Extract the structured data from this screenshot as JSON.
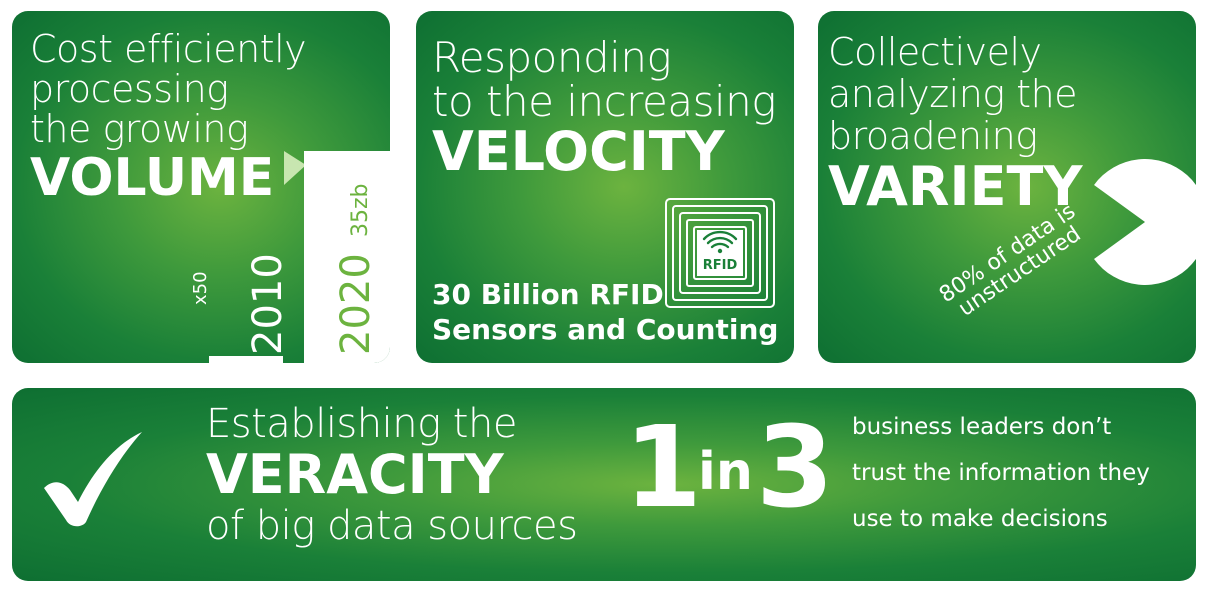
{
  "colors": {
    "tile_green": "#1a8038",
    "accent_green": "#6cb33f",
    "white": "#ffffff"
  },
  "volume": {
    "line1": "Cost efficiently",
    "line2": "processing",
    "line3": "the growing",
    "word": "VOLUME",
    "multiplier": "x50",
    "year_2010": "2010",
    "year_2020": "2020",
    "amount_2020": "35zb"
  },
  "velocity": {
    "line1": "Responding",
    "line2": "to the increasing",
    "word": "VELOCITY",
    "rfid_line1": "30 Billion RFID",
    "rfid_line2": "Sensors and Counting",
    "icon": "rfid-tag-icon",
    "icon_text": "RFID"
  },
  "variety": {
    "line1": "Collectively",
    "line2": "analyzing the",
    "line3": "broadening",
    "word": "VARIETY",
    "pie_label": "80% of data is unstructured",
    "unstructured_fraction": 0.8
  },
  "veracity": {
    "icon": "checkmark-icon",
    "line1": "Establishing the",
    "word": "VERACITY",
    "line3": "of big data sources",
    "stat_num1": "1",
    "stat_in": "in",
    "stat_num2": "3",
    "stat_text1": "business leaders don’t",
    "stat_text2": "trust the information they",
    "stat_text3": "use to make decisions"
  }
}
